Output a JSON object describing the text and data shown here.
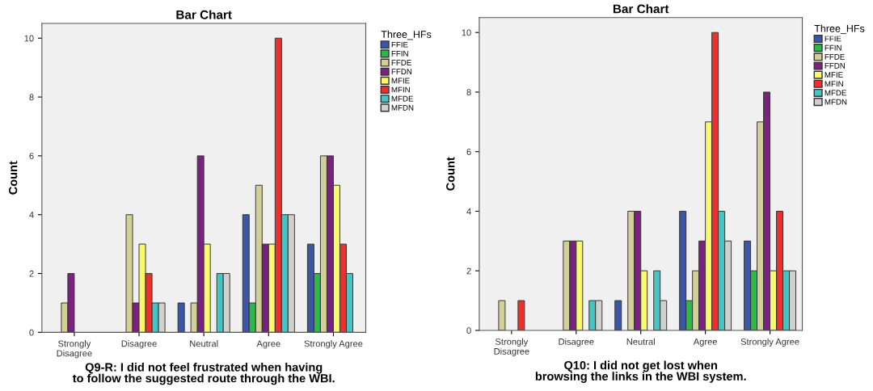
{
  "chart_data": [
    {
      "type": "bar",
      "title": "Bar Chart",
      "xlabel": "Q9-R: I did not feel frustrated when having to follow the suggested route through the WBI.",
      "ylabel": "Count",
      "legend_title": "Three_HFs",
      "legend": "right",
      "grid": false,
      "categories": [
        "Strongly Disagree",
        "Disagree",
        "Neutral",
        "Agree",
        "Strongly Agree"
      ],
      "ylim": [
        0,
        10.5
      ],
      "yticks": [
        0,
        2,
        4,
        6,
        8,
        10
      ],
      "series": [
        {
          "name": "FFIE",
          "color": "#3a56a8",
          "values": [
            0,
            0,
            1,
            4,
            3
          ]
        },
        {
          "name": "FFIN",
          "color": "#2db84a",
          "values": [
            0,
            0,
            0,
            1,
            2
          ]
        },
        {
          "name": "FFDE",
          "color": "#d4cf94",
          "values": [
            1,
            4,
            1,
            5,
            6
          ]
        },
        {
          "name": "FFDN",
          "color": "#7b2280",
          "values": [
            2,
            1,
            6,
            3,
            6
          ]
        },
        {
          "name": "MFIE",
          "color": "#fbf86a",
          "values": [
            0,
            3,
            3,
            3,
            5
          ]
        },
        {
          "name": "MFIN",
          "color": "#ef2e2e",
          "values": [
            0,
            2,
            0,
            10,
            3
          ]
        },
        {
          "name": "MFDE",
          "color": "#45c4c4",
          "values": [
            0,
            1,
            2,
            4,
            2
          ]
        },
        {
          "name": "MFDN",
          "color": "#d0d0d0",
          "values": [
            0,
            1,
            2,
            4,
            0
          ]
        }
      ]
    },
    {
      "type": "bar",
      "title": "Bar Chart",
      "xlabel": "Q10: I did not get lost when browsing the links in the WBI system.",
      "ylabel": "Count",
      "legend_title": "Three_HFs",
      "legend": "right",
      "grid": false,
      "categories": [
        "Strongly Disagree",
        "Disagree",
        "Neutral",
        "Agree",
        "Strongly Agree"
      ],
      "ylim": [
        0,
        10.5
      ],
      "yticks": [
        0,
        2,
        4,
        6,
        8,
        10
      ],
      "series": [
        {
          "name": "FFIE",
          "color": "#3a56a8",
          "values": [
            0,
            0,
            1,
            4,
            3
          ]
        },
        {
          "name": "FFIN",
          "color": "#2db84a",
          "values": [
            0,
            0,
            0,
            1,
            2
          ]
        },
        {
          "name": "FFDE",
          "color": "#d4cf94",
          "values": [
            1,
            3,
            4,
            2,
            7
          ]
        },
        {
          "name": "FFDN",
          "color": "#7b2280",
          "values": [
            0,
            3,
            4,
            3,
            8
          ]
        },
        {
          "name": "MFIE",
          "color": "#fbf86a",
          "values": [
            0,
            3,
            2,
            7,
            2
          ]
        },
        {
          "name": "MFIN",
          "color": "#ef2e2e",
          "values": [
            1,
            0,
            0,
            10,
            4
          ]
        },
        {
          "name": "MFDE",
          "color": "#45c4c4",
          "values": [
            0,
            1,
            2,
            4,
            2
          ]
        },
        {
          "name": "MFDN",
          "color": "#d0d0d0",
          "values": [
            0,
            1,
            1,
            3,
            2
          ]
        }
      ]
    }
  ]
}
